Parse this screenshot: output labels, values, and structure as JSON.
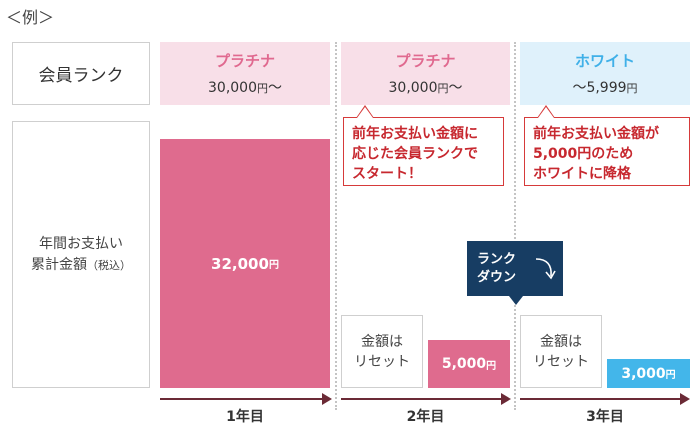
{
  "example_label": "＜例＞",
  "labels": {
    "rank": "会員ランク",
    "total_line1": "年間お支払い",
    "total_line2": "累計金額",
    "total_note": "（税込）"
  },
  "columns": [
    {
      "rank": "プラチナ",
      "threshold": "30,000",
      "unit": "円",
      "suffix": "～",
      "color": "#e0698f"
    },
    {
      "rank": "プラチナ",
      "threshold": "30,000",
      "unit": "円",
      "suffix": "～",
      "color": "#e0698f"
    },
    {
      "rank": "ホワイト",
      "prefix": "～",
      "threshold": "5,999",
      "unit": "円",
      "color": "#3fb0e8"
    }
  ],
  "callouts": [
    {
      "line1": "前年お支払い金額に",
      "line2": "応じた会員ランクで",
      "line3": "スタート！"
    },
    {
      "line1": "前年お支払い金額が",
      "line2": "5,000円のため",
      "line3": "ホワイトに降格"
    }
  ],
  "bars": [
    {
      "amount": "32,000",
      "unit": "円",
      "value": 32000,
      "color": "#df6b8e"
    },
    {
      "amount": "5,000",
      "unit": "円",
      "value": 5000,
      "color": "#df6b8e"
    },
    {
      "amount": "3,000",
      "unit": "円",
      "value": 3000,
      "color": "#43b6ea"
    }
  ],
  "reset_boxes": [
    {
      "line1": "金額は",
      "line2": "リセット"
    },
    {
      "line1": "金額は",
      "line2": "リセット"
    }
  ],
  "rank_down": {
    "line1": "ランク",
    "line2": "ダウン",
    "arrow_icon": "curved-arrow-icon"
  },
  "timeline": [
    "1年目",
    "2年目",
    "3年目"
  ]
}
